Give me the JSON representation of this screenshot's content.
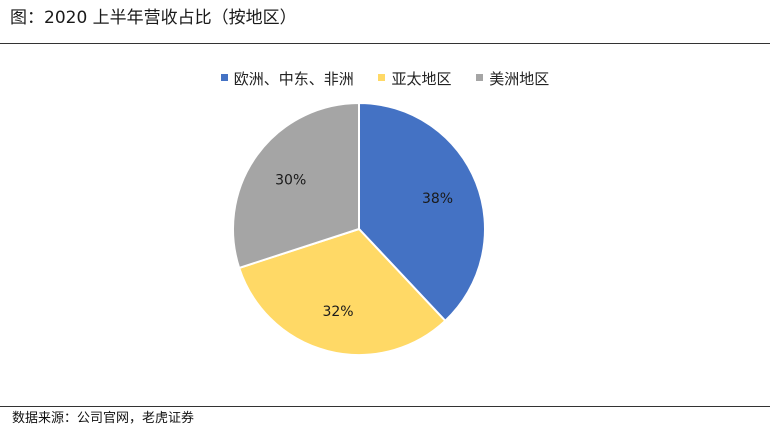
{
  "figure": {
    "title": "图：2020 上半年营收占比（按地区）",
    "source": "数据来源：公司官网，老虎证券"
  },
  "chart_data": {
    "type": "pie",
    "title": "",
    "legend_position": "top",
    "slices": [
      {
        "name": "欧洲、中东、非洲",
        "value": 38,
        "label": "38%",
        "color": "#4472C4"
      },
      {
        "name": "亚太地区",
        "value": 32,
        "label": "32%",
        "color": "#FFD966"
      },
      {
        "name": "美洲地区",
        "value": 30,
        "label": "30%",
        "color": "#A5A5A5"
      }
    ]
  }
}
